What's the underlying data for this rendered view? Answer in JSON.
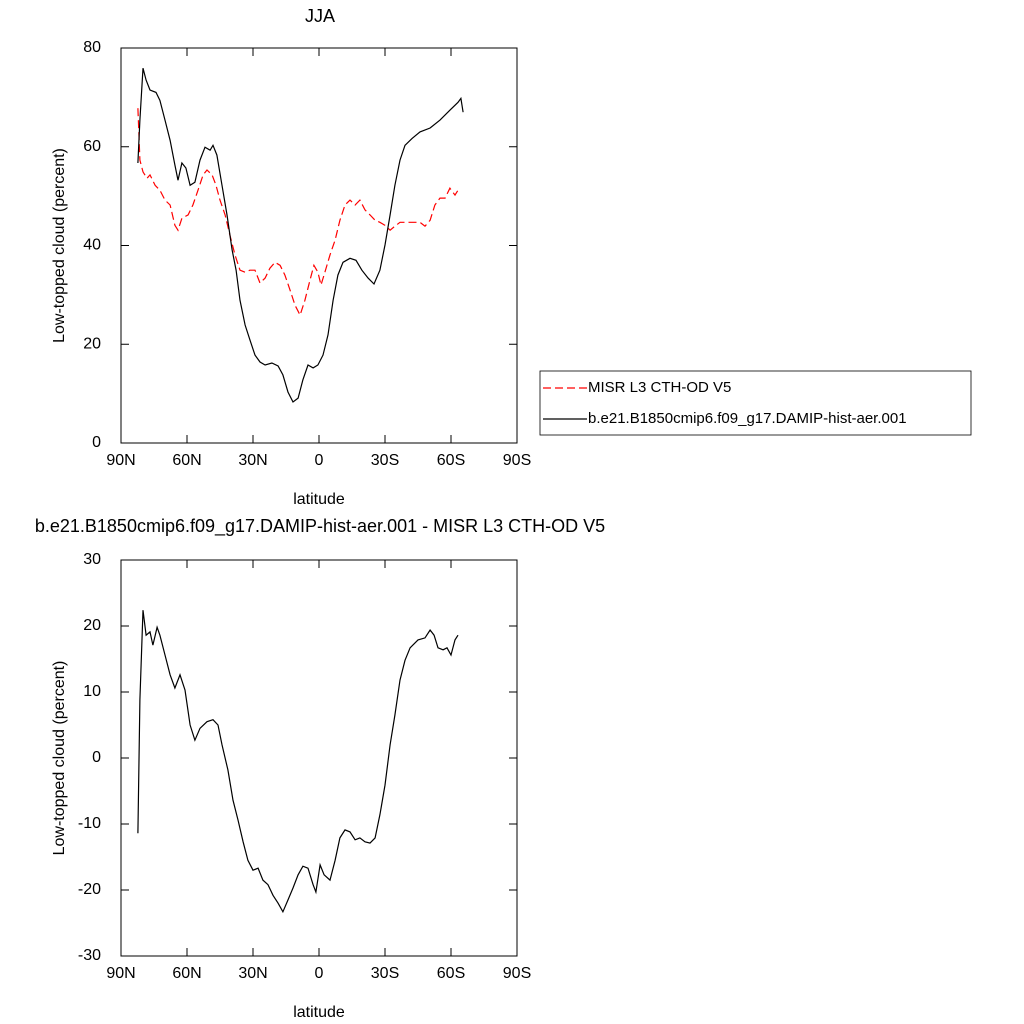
{
  "chart_data": [
    {
      "type": "line",
      "title": "JJA",
      "xlabel": "latitude",
      "ylabel": "Low-topped cloud (percent)",
      "xlim": [
        90,
        -90
      ],
      "ylim": [
        0,
        80
      ],
      "xticks": [
        {
          "value": 90,
          "label": "90N"
        },
        {
          "value": 60,
          "label": "60N"
        },
        {
          "value": 30,
          "label": "30N"
        },
        0,
        {
          "value": -30,
          "label": "30S"
        },
        {
          "value": -60,
          "label": "60S"
        },
        {
          "value": -90,
          "label": "90S"
        }
      ],
      "yticks": [
        0,
        20,
        40,
        60,
        80
      ],
      "legend": "right",
      "series": [
        {
          "name": "MISR L3 CTH-OD V5",
          "color": "#ff0000",
          "line_style": "dashed",
          "x": [
            82.3,
            81.4,
            80,
            78.2,
            76.8,
            74.5,
            72.3,
            70,
            67.7,
            65.5,
            64.1,
            62.3,
            59.5,
            57.3,
            55,
            52.7,
            50.9,
            48.6,
            46.8,
            45,
            42.7,
            40.5,
            38.2,
            35.9,
            33.6,
            31.4,
            29.1,
            26.8,
            24.5,
            22.3,
            20,
            17.7,
            15.5,
            13.2,
            10.9,
            8.6,
            6.4,
            4.1,
            2.3,
            0.5,
            -0.9,
            -2.7,
            -5,
            -7.3,
            -9.5,
            -11.8,
            -14.1,
            -16.4,
            -18.6,
            -20.9,
            -23.2,
            -25.5,
            -27.7,
            -30,
            -32.3,
            -34.5,
            -36.8,
            -41.4,
            -45.9,
            -48.2,
            -50.5,
            -52.7,
            -55,
            -57.3,
            -59.5,
            -61.8,
            -63.2
          ],
          "values": [
            67.8,
            57.3,
            54.9,
            53.6,
            54.3,
            52.2,
            51.2,
            49.2,
            48.2,
            44.1,
            43.1,
            45.5,
            46.2,
            48.2,
            51.2,
            54.3,
            55.3,
            54.3,
            52.2,
            49.2,
            46.2,
            42.1,
            38.1,
            35,
            34.6,
            35,
            35,
            32.4,
            33.4,
            35.4,
            36.6,
            36,
            34,
            31,
            27.9,
            25.9,
            28.9,
            33,
            36,
            34.6,
            32,
            34.6,
            38.1,
            41.1,
            45.1,
            48.2,
            49.2,
            48.2,
            49.2,
            47.2,
            46.2,
            45.1,
            44.7,
            44.1,
            43.1,
            43.9,
            44.7,
            44.7,
            44.7,
            43.9,
            45.1,
            48.2,
            49.6,
            49.6,
            51.6,
            50.2,
            51.2
          ]
        },
        {
          "name": "b.e21.B1850cmip6.f09_g17.DAMIP-hist-aer.001",
          "color": "#000000",
          "line_style": "solid",
          "x": [
            82.3,
            81.4,
            80,
            78.6,
            76.8,
            74.1,
            72.3,
            70,
            67.7,
            65.5,
            64.1,
            62.3,
            60.5,
            58.6,
            56.4,
            54.1,
            51.8,
            49.5,
            48.2,
            46.4,
            44.1,
            41.8,
            39.5,
            37.7,
            35.9,
            33.6,
            31.4,
            29.1,
            26.8,
            24.5,
            21.4,
            18.6,
            16.4,
            14.1,
            11.8,
            9.5,
            7.3,
            5,
            2.7,
            0.5,
            -1.8,
            -4.1,
            -6.4,
            -8.6,
            -10.9,
            -14.1,
            -16.8,
            -19.5,
            -22.3,
            -25,
            -27.7,
            -30,
            -32.3,
            -34.5,
            -36.8,
            -39.1,
            -42.3,
            -45.9,
            -50.5,
            -55,
            -59.5,
            -63.2,
            -64.5,
            -65.5
          ],
          "values": [
            56.7,
            65.4,
            75.9,
            73.5,
            71.5,
            71,
            69.4,
            65.4,
            61.3,
            56.3,
            53.2,
            56.7,
            55.7,
            52.2,
            52.8,
            57.3,
            59.9,
            59.3,
            60.3,
            58.3,
            52.2,
            46.2,
            39.1,
            35,
            28.9,
            23.9,
            20.9,
            17.8,
            16.4,
            15.8,
            16.2,
            15.6,
            13.8,
            10.3,
            8.3,
            9.1,
            12.8,
            15.8,
            15.2,
            15.8,
            17.8,
            21.9,
            28.9,
            34,
            36.6,
            37.4,
            37,
            35,
            33.4,
            32.2,
            35,
            40.1,
            46.2,
            52.2,
            57.3,
            60.3,
            61.7,
            63,
            63.8,
            65.4,
            67.4,
            69,
            69.8,
            67
          ]
        }
      ]
    },
    {
      "type": "line",
      "title": "b.e21.B1850cmip6.f09_g17.DAMIP-hist-aer.001 - MISR L3 CTH-OD V5",
      "xlabel": "latitude",
      "ylabel": "Low-topped cloud (percent)",
      "xlim": [
        90,
        -90
      ],
      "ylim": [
        -30,
        30
      ],
      "xticks": [
        {
          "value": 90,
          "label": "90N"
        },
        {
          "value": 60,
          "label": "60N"
        },
        {
          "value": 30,
          "label": "30N"
        },
        0,
        {
          "value": -30,
          "label": "30S"
        },
        {
          "value": -60,
          "label": "60S"
        },
        {
          "value": -90,
          "label": "90S"
        }
      ],
      "yticks": [
        -30,
        -20,
        -10,
        0,
        10,
        20,
        30
      ],
      "series": [
        {
          "color": "#000000",
          "line_style": "solid",
          "x": [
            82.3,
            81.4,
            80,
            78.6,
            76.8,
            75.5,
            73.6,
            72.3,
            70,
            67.7,
            65.5,
            63.2,
            60.9,
            58.6,
            56.4,
            54.1,
            50.9,
            48.2,
            45.9,
            44.1,
            41.4,
            39.1,
            36.8,
            34.5,
            32.3,
            30,
            27.7,
            25.5,
            23.2,
            20.9,
            18.6,
            16.4,
            14.1,
            11.8,
            9.5,
            7.3,
            5,
            2.7,
            1.4,
            -0.5,
            -2.3,
            -5,
            -7.3,
            -9.5,
            -11.8,
            -14.1,
            -16.4,
            -18.6,
            -20.9,
            -23.2,
            -25.5,
            -27.7,
            -30,
            -32.3,
            -34.5,
            -36.8,
            -39.1,
            -41.4,
            -45,
            -48.2,
            -50.5,
            -52.3,
            -54.1,
            -56.4,
            -58.2,
            -60,
            -61.8,
            -63.2
          ],
          "values": [
            -11.4,
            8.8,
            22.4,
            18.6,
            19.1,
            17.1,
            19.8,
            18.6,
            15.6,
            12.6,
            10.6,
            12.6,
            10.3,
            5,
            2.7,
            4.5,
            5.5,
            5.8,
            5,
            2,
            -1.8,
            -6.4,
            -9.4,
            -12.7,
            -15.5,
            -17,
            -16.7,
            -18.5,
            -19.2,
            -20.8,
            -22,
            -23.3,
            -21.5,
            -19.7,
            -17.7,
            -16.4,
            -16.7,
            -19.2,
            -20.3,
            -16.2,
            -17.7,
            -18.5,
            -15.5,
            -12.1,
            -10.9,
            -11.2,
            -12.4,
            -12.1,
            -12.7,
            -12.9,
            -12.1,
            -8.6,
            -4.1,
            2,
            6.5,
            11.8,
            14.8,
            16.7,
            17.9,
            18.2,
            19.4,
            18.6,
            16.7,
            16.4,
            16.7,
            15.6,
            17.9,
            18.6
          ]
        }
      ]
    }
  ]
}
